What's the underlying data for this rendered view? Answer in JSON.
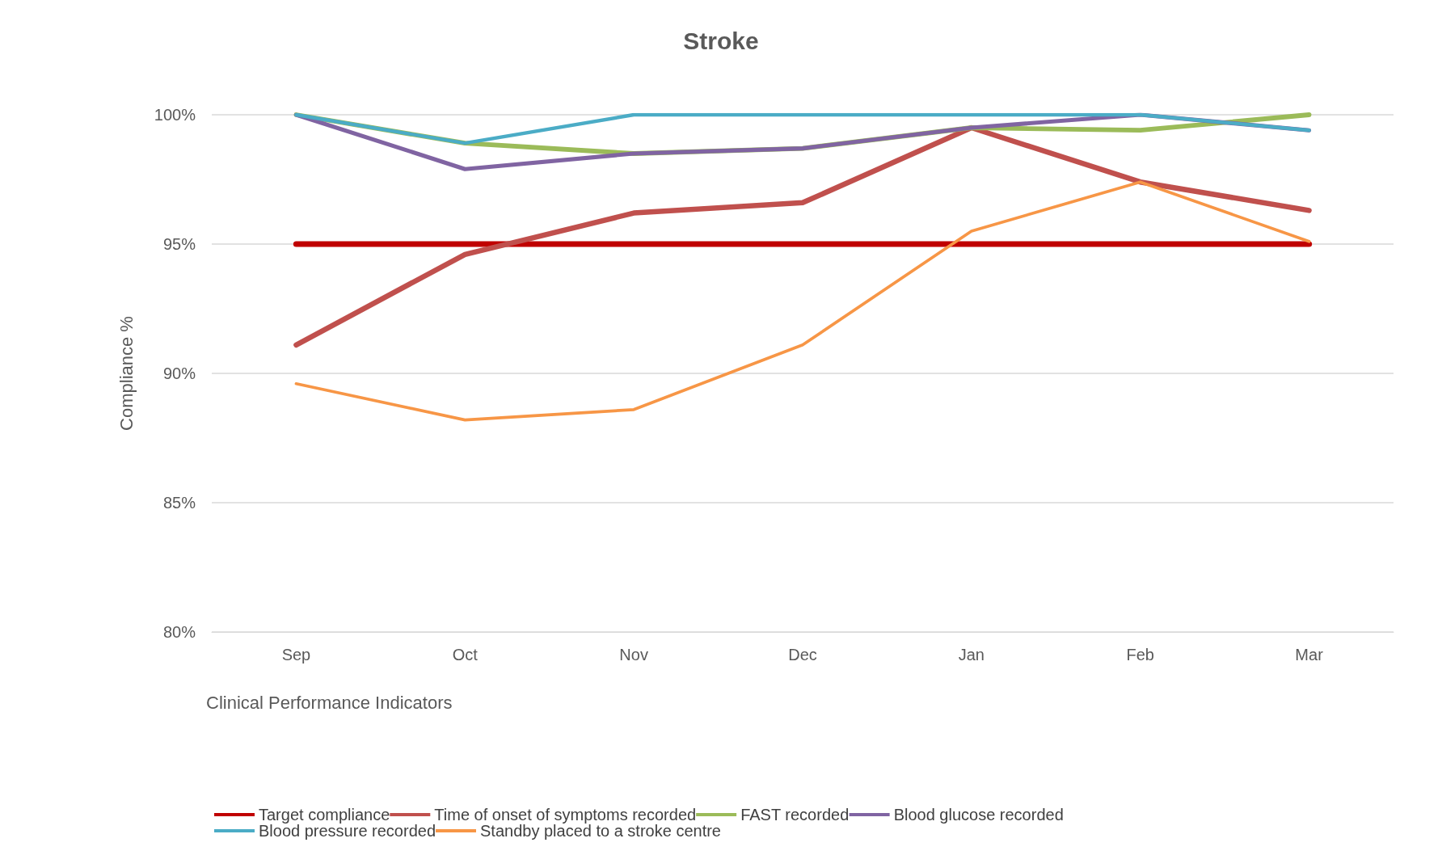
{
  "chart_data": {
    "type": "line",
    "title": "Stroke",
    "xlabel": "Clinical Performance Indicators",
    "ylabel": "Compliance %",
    "categories": [
      "Sep",
      "Oct",
      "Nov",
      "Dec",
      "Jan",
      "Feb",
      "Mar"
    ],
    "series": [
      {
        "name": "Target compliance",
        "color": "#c00000",
        "values": [
          95,
          95,
          95,
          95,
          95,
          95,
          95
        ]
      },
      {
        "name": "Time of onset of symptoms recorded",
        "color": "#c0504d",
        "values": [
          91.1,
          94.6,
          96.2,
          96.6,
          99.5,
          97.4,
          96.3
        ]
      },
      {
        "name": "FAST recorded",
        "color": "#9bbb59",
        "values": [
          100,
          98.9,
          98.5,
          98.7,
          99.5,
          99.4,
          100
        ]
      },
      {
        "name": "Blood glucose recorded",
        "color": "#8064a2",
        "values": [
          100,
          97.9,
          98.5,
          98.7,
          99.5,
          100,
          99.4
        ]
      },
      {
        "name": "Blood pressure recorded",
        "color": "#4bacc6",
        "values": [
          100,
          98.9,
          100,
          100,
          100,
          100,
          99.4
        ]
      },
      {
        "name": "Standby placed to a stroke centre",
        "color": "#f79646",
        "values": [
          89.6,
          88.2,
          88.6,
          91.1,
          95.5,
          97.4,
          95.1
        ]
      }
    ],
    "ylim": [
      80,
      100
    ],
    "yticks": [
      {
        "value": 80,
        "label": "80%"
      },
      {
        "value": 85,
        "label": "85%"
      },
      {
        "value": 90,
        "label": "90%"
      },
      {
        "value": 95,
        "label": "95%"
      },
      {
        "value": 100,
        "label": "100%"
      }
    ],
    "grid": "y",
    "legend": "bottom",
    "marker": "none",
    "line_style": "solid"
  }
}
